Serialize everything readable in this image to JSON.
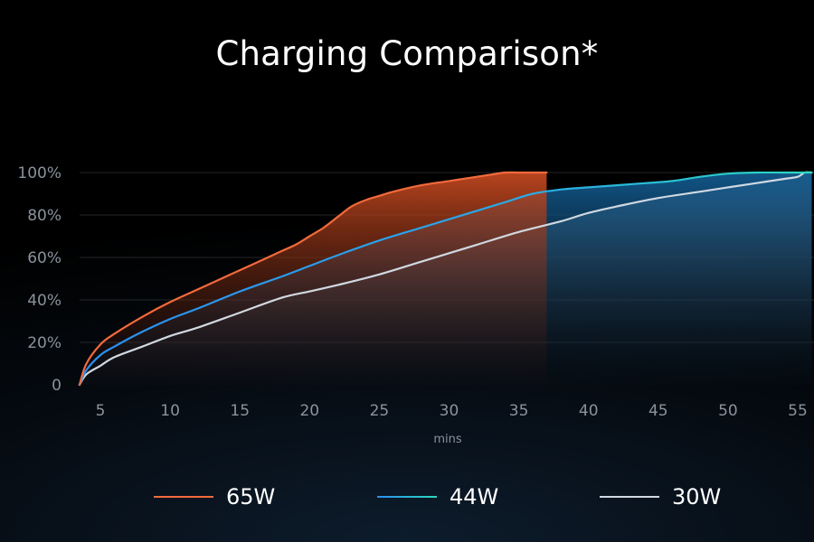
{
  "chart_data": {
    "type": "area",
    "title": "Charging Comparison*",
    "xlabel": "mins",
    "ylabel": "",
    "xlim": [
      3.5,
      56
    ],
    "ylim": [
      0,
      100
    ],
    "x_ticks": [
      5,
      10,
      15,
      20,
      25,
      30,
      35,
      40,
      45,
      50,
      55
    ],
    "y_ticks": [
      {
        "value": 0,
        "label": "0"
      },
      {
        "value": 20,
        "label": "20%"
      },
      {
        "value": 40,
        "label": "40%"
      },
      {
        "value": 60,
        "label": "60%"
      },
      {
        "value": 80,
        "label": "80%"
      },
      {
        "value": 100,
        "label": "100%"
      }
    ],
    "grid": "horizontal",
    "legend_position": "bottom",
    "series": [
      {
        "name": "65W",
        "color": "#f26a3c",
        "fill": "#b8401c",
        "x": [
          3.5,
          4,
          5,
          6,
          8,
          10,
          12,
          14,
          16,
          18,
          19,
          20,
          21,
          22,
          23,
          24,
          25,
          26,
          28,
          30,
          32,
          33,
          34,
          35,
          36,
          37
        ],
        "y": [
          0,
          10,
          19,
          24,
          32,
          39,
          45,
          51,
          57,
          63,
          66,
          70,
          74,
          79,
          84,
          87,
          89,
          91,
          94,
          96,
          98,
          99,
          100,
          100,
          100,
          100
        ]
      },
      {
        "name": "44W",
        "color": "#2a9cf0",
        "color_end": "#2bd2c4",
        "fill": "#0e4e80",
        "x": [
          3.5,
          4,
          5,
          6,
          8,
          10,
          12,
          15,
          18,
          20,
          22,
          25,
          28,
          30,
          32,
          34,
          36,
          38,
          40,
          42,
          44,
          46,
          48,
          50,
          52,
          54,
          56
        ],
        "y": [
          0,
          7,
          14,
          18,
          25,
          31,
          36,
          44,
          51,
          56,
          61,
          68,
          74,
          78,
          82,
          86,
          90,
          92,
          93,
          94,
          95,
          96,
          98,
          99.5,
          100,
          100,
          100
        ]
      },
      {
        "name": "30W",
        "color": "#d0d8e0",
        "fill": "#5a6e82",
        "x": [
          3.5,
          4,
          5,
          6,
          8,
          10,
          12,
          15,
          18,
          20,
          22,
          25,
          28,
          30,
          32,
          35,
          38,
          40,
          42,
          45,
          48,
          50,
          52,
          54,
          55,
          55.5,
          56
        ],
        "y": [
          0,
          5,
          9,
          13,
          18,
          23,
          27,
          34,
          41,
          44,
          47,
          52,
          58,
          62,
          66,
          72,
          77,
          81,
          84,
          88,
          91,
          93,
          95,
          97,
          98,
          100,
          100
        ]
      }
    ]
  }
}
